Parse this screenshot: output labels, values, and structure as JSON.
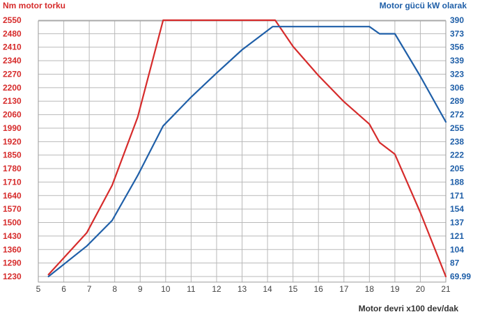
{
  "chart_data": {
    "type": "line",
    "left_axis_title": "Nm motor torku",
    "right_axis_title": "Motor gücü kW olarak",
    "xlabel": "Motor devri x100 dev/dak",
    "x_ticks": [
      "5",
      "6",
      "7",
      "8",
      "9",
      "10",
      "11",
      "12",
      "13",
      "14",
      "15",
      "16",
      "17",
      "18",
      "19",
      "20",
      "21"
    ],
    "left_ticks": [
      "2550",
      "2480",
      "2410",
      "2340",
      "2270",
      "2200",
      "2130",
      "2060",
      "1990",
      "1920",
      "1850",
      "1780",
      "1710",
      "1640",
      "1570",
      "1500",
      "1430",
      "1360",
      "1290",
      "1230"
    ],
    "right_ticks": [
      "390",
      "373",
      "356",
      "339",
      "323",
      "306",
      "289",
      "272",
      "255",
      "238",
      "222",
      "205",
      "188",
      "171",
      "154",
      "137",
      "121",
      "104",
      "87",
      "69.99"
    ],
    "xlim": [
      5,
      21
    ],
    "left_ylim": [
      1230,
      2550
    ],
    "right_ylim": [
      69.99,
      390
    ],
    "grid": true,
    "colors": {
      "torque": "#d62b2b",
      "power": "#1f5fa8"
    },
    "series": [
      {
        "axis": "left",
        "color": "#d62b2b",
        "x": [
          5.4,
          6.9,
          7.9,
          8.9,
          9.9,
          14.3,
          15.0,
          16.0,
          17.0,
          18.0,
          18.4,
          19.0,
          20.0,
          21.0
        ],
        "y": [
          1240,
          1455,
          1700,
          2050,
          2550,
          2550,
          2415,
          2265,
          2130,
          2015,
          1920,
          1860,
          1560,
          1230
        ]
      },
      {
        "axis": "right",
        "color": "#1f5fa8",
        "x": [
          5.4,
          6.9,
          7.9,
          8.9,
          9.9,
          11.0,
          12.0,
          13.0,
          14.2,
          15.0,
          16.0,
          17.0,
          18.0,
          18.4,
          19.0,
          20.0,
          21.0
        ],
        "y": [
          69.99,
          108,
          140,
          196,
          258,
          294,
          324,
          353,
          382,
          382,
          382,
          382,
          382,
          373,
          373,
          320,
          263
        ]
      }
    ]
  }
}
